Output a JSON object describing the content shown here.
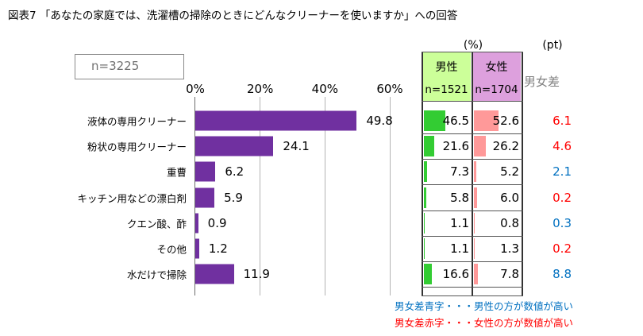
{
  "title": "図表7 「あなたの家庭では、洗濯槽の掃除のときにどんなクリーナーを使いますか」への回答",
  "sample": "n=3225",
  "colors": {
    "bar": "#7030a0",
    "male": "#33cc33",
    "female": "#ff9999",
    "blue": "#0070c0",
    "red": "#ff0000"
  },
  "chart_data": {
    "type": "bar",
    "orientation": "horizontal",
    "categories": [
      "液体の専用クリーナー",
      "粉状の専用クリーナー",
      "重曹",
      "キッチン用などの漂白剤",
      "クエン酸、酢",
      "その他",
      "水だけで掃除"
    ],
    "values": [
      49.8,
      24.1,
      6.2,
      5.9,
      0.9,
      1.2,
      11.9
    ],
    "value_labels": [
      "49.8",
      "24.1",
      "6.2",
      "5.9",
      "0.9",
      "1.2",
      "11.9"
    ],
    "xlim": [
      0,
      60
    ],
    "ticks": [
      0,
      20,
      40,
      60
    ],
    "tick_labels": [
      "0%",
      "20%",
      "40%",
      "60%"
    ]
  },
  "table": {
    "unit_pct": "(%)",
    "unit_pt": "(pt)",
    "male": {
      "label": "男性",
      "n": "n=1521",
      "values": [
        46.5,
        21.6,
        7.3,
        5.8,
        1.1,
        1.1,
        16.6
      ],
      "labels": [
        "46.5",
        "21.6",
        "7.3",
        "5.8",
        "1.1",
        "1.1",
        "16.6"
      ]
    },
    "female": {
      "label": "女性",
      "n": "n=1704",
      "values": [
        52.6,
        26.2,
        5.2,
        6.0,
        0.8,
        1.3,
        7.8
      ],
      "labels": [
        "52.6",
        "26.2",
        "5.2",
        "6.0",
        "0.8",
        "1.3",
        "7.8"
      ]
    },
    "diff": {
      "label": "男女差",
      "labels": [
        "6.1",
        "4.6",
        "2.1",
        "0.2",
        "0.3",
        "0.2",
        "8.8"
      ],
      "colors": [
        "red",
        "red",
        "blue",
        "red",
        "blue",
        "red",
        "blue"
      ]
    }
  },
  "notes": {
    "blue": "男女差青字・・・男性の方が数値が高い",
    "red": "男女差赤字・・・女性の方が数値が高い"
  }
}
